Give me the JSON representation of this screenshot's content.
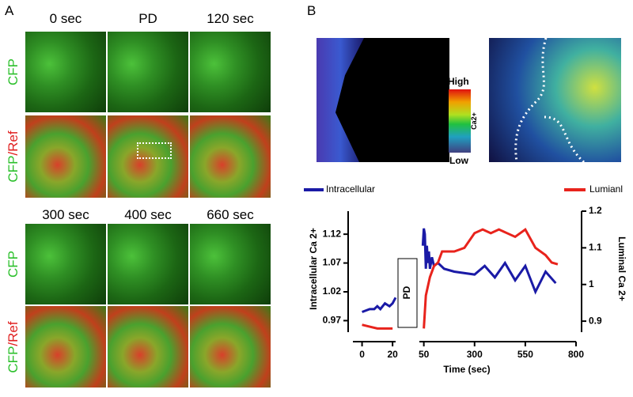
{
  "panel_a": {
    "label": "A",
    "times_top": [
      "0 sec",
      "PD",
      "120 sec"
    ],
    "times_bottom": [
      "300 sec",
      "400 sec",
      "660 sec"
    ],
    "rows": [
      {
        "text": "CFP"
      },
      {
        "text": "CFP",
        "suffix": "/Ref"
      },
      {
        "text": "CFP"
      },
      {
        "text": "CFP",
        "suffix": "/Ref"
      }
    ]
  },
  "panel_b": {
    "label": "B",
    "colorbar": {
      "high": "High",
      "low": "Low",
      "label": "Ca2+"
    }
  },
  "chart_data": {
    "type": "line",
    "x_label": "Time (sec)",
    "y_label": "Intracellular Ca 2+",
    "y2_label": "Luminal Ca 2+",
    "annotation": "PD",
    "xlim": [
      [
        -6,
        22
      ],
      [
        28,
        800
      ]
    ],
    "xticks": [
      0,
      20,
      50,
      300,
      550,
      800
    ],
    "ylim": [
      0.95,
      1.16
    ],
    "yticks": [
      0.97,
      1.02,
      1.07,
      1.12
    ],
    "y2lim": [
      0.87,
      1.2
    ],
    "y2ticks": [
      0.9,
      1.0,
      1.1,
      1.2
    ],
    "series": [
      {
        "name": "Intracellular",
        "color": "#1a1aa6",
        "x": [
          0,
          5,
          8,
          10,
          12,
          15,
          18,
          20,
          22,
          45,
          50,
          55,
          60,
          65,
          70,
          75,
          80,
          90,
          100,
          120,
          150,
          200,
          300,
          350,
          400,
          450,
          500,
          550,
          600,
          650,
          700
        ],
        "values": [
          0.985,
          0.99,
          0.99,
          0.995,
          0.99,
          1.0,
          0.995,
          1.0,
          1.01,
          1.1,
          1.13,
          1.12,
          1.06,
          1.1,
          1.07,
          1.09,
          1.06,
          1.08,
          1.065,
          1.07,
          1.06,
          1.055,
          1.05,
          1.065,
          1.045,
          1.07,
          1.04,
          1.065,
          1.02,
          1.055,
          1.035
        ]
      },
      {
        "name": "Lumianl",
        "color": "#e8231c",
        "axis": "y2",
        "x": [
          0,
          5,
          10,
          15,
          20,
          50,
          60,
          80,
          100,
          120,
          140,
          200,
          250,
          300,
          340,
          380,
          420,
          460,
          500,
          550,
          600,
          650,
          680,
          710
        ],
        "values": [
          0.89,
          0.885,
          0.88,
          0.88,
          0.88,
          0.88,
          0.97,
          1.02,
          1.05,
          1.06,
          1.09,
          1.09,
          1.1,
          1.14,
          1.15,
          1.14,
          1.15,
          1.14,
          1.13,
          1.15,
          1.1,
          1.08,
          1.06,
          1.055
        ]
      }
    ]
  }
}
